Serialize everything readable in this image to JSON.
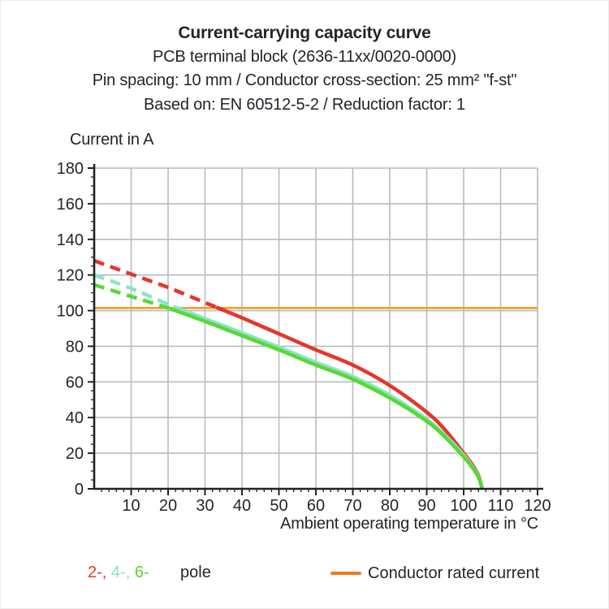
{
  "header": {
    "line1": "Current-carrying capacity curve",
    "line2": "PCB terminal block (2636-11xx/0020-0000)",
    "line3": "Pin spacing: 10 mm / Conductor cross-section: 25 mm² \"f-st\"",
    "line4": "Based on: EN 60512-5-2 / Reduction factor: 1"
  },
  "legend": {
    "poles": [
      {
        "label": "2-",
        "color": "#e6352b"
      },
      {
        "label": "4-",
        "color": "#8ce3c8"
      },
      {
        "label": "6-",
        "color": "#58d836"
      }
    ],
    "pole_word": "pole",
    "rated": {
      "label": "Conductor rated current",
      "color": "#f2791a"
    }
  },
  "chart_data": {
    "type": "line",
    "title": "Current-carrying capacity curve",
    "xlabel": "Ambient operating temperature in °C",
    "ylabel": "Current in A",
    "xlim": [
      0,
      120
    ],
    "ylim": [
      0,
      180
    ],
    "x_ticks": [
      10,
      20,
      30,
      40,
      50,
      60,
      70,
      80,
      90,
      100,
      110,
      120
    ],
    "y_ticks": [
      0,
      20,
      40,
      60,
      80,
      100,
      120,
      140,
      160,
      180
    ],
    "x_minor_step": 2,
    "y_minor_step": 5,
    "grid": true,
    "legend_position": "bottom",
    "colors": {
      "grid": "#b6bcbe",
      "axis": "#222222",
      "text": "#20262b"
    },
    "reference_line": {
      "name": "Conductor rated current",
      "value": 101.5,
      "color": "#f59d26"
    },
    "series": [
      {
        "name": "2-pole",
        "color": "#e6352b",
        "style_dashed_until_x": 33,
        "points": [
          [
            0,
            128
          ],
          [
            10,
            120.5
          ],
          [
            20,
            113
          ],
          [
            30,
            104.5
          ],
          [
            40,
            96
          ],
          [
            50,
            87
          ],
          [
            60,
            78
          ],
          [
            70,
            69.5
          ],
          [
            80,
            58
          ],
          [
            90,
            43
          ],
          [
            95,
            33
          ],
          [
            100,
            20
          ],
          [
            102,
            14.5
          ],
          [
            104,
            7.5
          ],
          [
            105,
            0
          ]
        ]
      },
      {
        "name": "4-pole",
        "color": "#8ce3c8",
        "style_dashed_until_x": 22,
        "points": [
          [
            0,
            120
          ],
          [
            10,
            112.5
          ],
          [
            20,
            103.5
          ],
          [
            30,
            95.5
          ],
          [
            40,
            87.5
          ],
          [
            50,
            79.5
          ],
          [
            60,
            71
          ],
          [
            70,
            63
          ],
          [
            80,
            52.5
          ],
          [
            90,
            39
          ],
          [
            95,
            30
          ],
          [
            100,
            19
          ],
          [
            102,
            13.5
          ],
          [
            104,
            7
          ],
          [
            105,
            0
          ]
        ]
      },
      {
        "name": "6-pole",
        "color": "#58d836",
        "style_dashed_until_x": 20.5,
        "points": [
          [
            0,
            114.5
          ],
          [
            10,
            108
          ],
          [
            20,
            101.5
          ],
          [
            30,
            94
          ],
          [
            40,
            86
          ],
          [
            50,
            78
          ],
          [
            60,
            69.5
          ],
          [
            70,
            61.5
          ],
          [
            80,
            51
          ],
          [
            90,
            38
          ],
          [
            95,
            29
          ],
          [
            100,
            18
          ],
          [
            102,
            13
          ],
          [
            104,
            6.5
          ],
          [
            105,
            0
          ]
        ]
      }
    ]
  }
}
